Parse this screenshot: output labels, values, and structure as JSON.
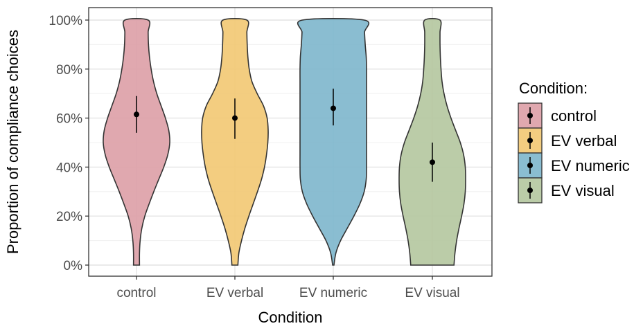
{
  "chart_data": {
    "type": "violin",
    "xlabel": "Condition",
    "ylabel": "Proportion of compliance choices",
    "ylim": [
      0,
      100
    ],
    "yticks": [
      "0%",
      "20%",
      "40%",
      "60%",
      "80%",
      "100%"
    ],
    "categories": [
      "control",
      "EV verbal",
      "EV numeric",
      "EV visual"
    ],
    "series": [
      {
        "name": "control",
        "color": "#DD9EA6",
        "mean": 61.5,
        "ci_low": 54,
        "ci_high": 69,
        "density": [
          [
            0,
            0.09
          ],
          [
            5,
            0.09
          ],
          [
            10,
            0.11
          ],
          [
            15,
            0.16
          ],
          [
            20,
            0.25
          ],
          [
            25,
            0.38
          ],
          [
            30,
            0.52
          ],
          [
            35,
            0.67
          ],
          [
            40,
            0.82
          ],
          [
            45,
            0.94
          ],
          [
            50,
            1.0
          ],
          [
            55,
            0.97
          ],
          [
            60,
            0.87
          ],
          [
            65,
            0.74
          ],
          [
            70,
            0.61
          ],
          [
            75,
            0.51
          ],
          [
            80,
            0.44
          ],
          [
            85,
            0.39
          ],
          [
            90,
            0.36
          ],
          [
            95,
            0.35
          ],
          [
            100,
            0.35
          ]
        ]
      },
      {
        "name": "EV verbal",
        "color": "#F2C872",
        "mean": 60,
        "ci_low": 51.5,
        "ci_high": 68,
        "density": [
          [
            0,
            0.09
          ],
          [
            5,
            0.12
          ],
          [
            10,
            0.2
          ],
          [
            15,
            0.3
          ],
          [
            20,
            0.42
          ],
          [
            25,
            0.55
          ],
          [
            30,
            0.68
          ],
          [
            35,
            0.8
          ],
          [
            40,
            0.89
          ],
          [
            45,
            0.95
          ],
          [
            50,
            0.99
          ],
          [
            55,
            1.0
          ],
          [
            60,
            0.97
          ],
          [
            65,
            0.86
          ],
          [
            70,
            0.67
          ],
          [
            75,
            0.51
          ],
          [
            80,
            0.43
          ],
          [
            85,
            0.39
          ],
          [
            90,
            0.37
          ],
          [
            95,
            0.36
          ],
          [
            100,
            0.36
          ]
        ]
      },
      {
        "name": "EV numeric",
        "color": "#7DB6CC",
        "mean": 64,
        "ci_low": 57,
        "ci_high": 72,
        "density": [
          [
            0,
            0.02
          ],
          [
            5,
            0.08
          ],
          [
            10,
            0.22
          ],
          [
            15,
            0.42
          ],
          [
            20,
            0.62
          ],
          [
            25,
            0.8
          ],
          [
            30,
            0.93
          ],
          [
            35,
            0.99
          ],
          [
            40,
            1.0
          ],
          [
            45,
            1.0
          ],
          [
            50,
            1.0
          ],
          [
            55,
            1.0
          ],
          [
            60,
            1.0
          ],
          [
            65,
            1.0
          ],
          [
            70,
            1.0
          ],
          [
            75,
            1.0
          ],
          [
            80,
            1.0
          ],
          [
            85,
            0.99
          ],
          [
            90,
            0.96
          ],
          [
            95,
            0.94
          ],
          [
            100,
            0.93
          ]
        ]
      },
      {
        "name": "EV visual",
        "color": "#B4C69E",
        "mean": 42,
        "ci_low": 34,
        "ci_high": 50,
        "density": [
          [
            0,
            0.65
          ],
          [
            5,
            0.68
          ],
          [
            10,
            0.73
          ],
          [
            15,
            0.8
          ],
          [
            20,
            0.88
          ],
          [
            25,
            0.95
          ],
          [
            30,
            0.99
          ],
          [
            35,
            1.0
          ],
          [
            40,
            0.99
          ],
          [
            45,
            0.94
          ],
          [
            50,
            0.84
          ],
          [
            55,
            0.7
          ],
          [
            60,
            0.56
          ],
          [
            65,
            0.44
          ],
          [
            70,
            0.35
          ],
          [
            75,
            0.29
          ],
          [
            80,
            0.26
          ],
          [
            85,
            0.24
          ],
          [
            90,
            0.23
          ],
          [
            95,
            0.23
          ],
          [
            100,
            0.23
          ]
        ]
      }
    ],
    "legend": {
      "title": "Condition:",
      "position": "right",
      "entries": [
        "control",
        "EV verbal",
        "EV numeric",
        "EV visual"
      ]
    },
    "grid": true,
    "panel_border": true
  }
}
